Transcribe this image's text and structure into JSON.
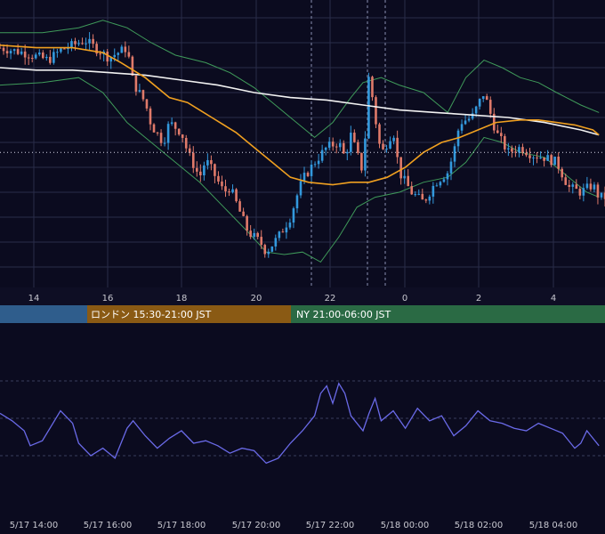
{
  "chart_data": [
    {
      "type": "candlestick",
      "panel": "price",
      "overlays": [
        "bollinger-bands",
        "moving-average-orange",
        "moving-average-white"
      ],
      "colors": {
        "up": "#3399dd",
        "down": "#e07a6a",
        "bollinger": "#3f9a5a",
        "ma_fast": "#f0a020",
        "ma_slow": "#f2f2f2",
        "grid": "#2a2d4a",
        "background": "#0b0b1f"
      },
      "ylim": [
        0,
        100
      ],
      "current_price_level": 46,
      "x_tick_labels": [
        "14",
        "16",
        "18",
        "20",
        "22",
        "0",
        "2",
        "4"
      ],
      "sessions": [
        {
          "name": "tokyo",
          "label": "",
          "color": "#2f5d8c"
        },
        {
          "name": "london",
          "label": "ロンドン 15:30-21:00 JST",
          "color": "#8a5a14"
        },
        {
          "name": "newyork",
          "label": "NY 21:00-06:00 JST",
          "color": "#2a6a44"
        }
      ],
      "close_path": [
        [
          0,
          88
        ],
        [
          4,
          86
        ],
        [
          8,
          83
        ],
        [
          10,
          87
        ],
        [
          14,
          91
        ],
        [
          18,
          84
        ],
        [
          21,
          88
        ],
        [
          22,
          74
        ],
        [
          24,
          66
        ],
        [
          25,
          57
        ],
        [
          27,
          50
        ],
        [
          28,
          58
        ],
        [
          30,
          54
        ],
        [
          31,
          46
        ],
        [
          33,
          36
        ],
        [
          34,
          43
        ],
        [
          35,
          39
        ],
        [
          37,
          30
        ],
        [
          38,
          32
        ],
        [
          40,
          20
        ],
        [
          41,
          14
        ],
        [
          43,
          10
        ],
        [
          44,
          6
        ],
        [
          46,
          12
        ],
        [
          48,
          20
        ],
        [
          49,
          28
        ],
        [
          50,
          35
        ],
        [
          52,
          42
        ],
        [
          54,
          48
        ],
        [
          56,
          50
        ],
        [
          57,
          44
        ],
        [
          58,
          53
        ],
        [
          60,
          38
        ],
        [
          61,
          78
        ],
        [
          62,
          60
        ],
        [
          63,
          45
        ],
        [
          65,
          55
        ],
        [
          66,
          38
        ],
        [
          68,
          30
        ],
        [
          70,
          26
        ],
        [
          72,
          34
        ],
        [
          74,
          38
        ],
        [
          75,
          46
        ],
        [
          76,
          58
        ],
        [
          78,
          60
        ],
        [
          80,
          70
        ],
        [
          81,
          62
        ],
        [
          82,
          54
        ],
        [
          84,
          46
        ],
        [
          86,
          48
        ],
        [
          88,
          45
        ],
        [
          90,
          44
        ],
        [
          92,
          42
        ],
        [
          94,
          32
        ],
        [
          96,
          30
        ],
        [
          98,
          33
        ],
        [
          99,
          28
        ]
      ],
      "upper_band_path": [
        [
          0,
          94
        ],
        [
          7,
          94
        ],
        [
          13,
          96
        ],
        [
          17,
          99
        ],
        [
          21,
          96
        ],
        [
          25,
          90
        ],
        [
          29,
          85
        ],
        [
          34,
          82
        ],
        [
          38,
          78
        ],
        [
          42,
          72
        ],
        [
          46,
          64
        ],
        [
          49,
          58
        ],
        [
          52,
          52
        ],
        [
          55,
          58
        ],
        [
          58,
          68
        ],
        [
          60,
          74
        ],
        [
          63,
          76
        ],
        [
          66,
          73
        ],
        [
          70,
          70
        ],
        [
          74,
          62
        ],
        [
          77,
          76
        ],
        [
          80,
          83
        ],
        [
          83,
          80
        ],
        [
          86,
          76
        ],
        [
          89,
          74
        ],
        [
          92,
          70
        ],
        [
          96,
          65
        ],
        [
          99,
          62
        ]
      ],
      "lower_band_path": [
        [
          0,
          73
        ],
        [
          7,
          74
        ],
        [
          13,
          76
        ],
        [
          17,
          70
        ],
        [
          21,
          58
        ],
        [
          25,
          50
        ],
        [
          29,
          42
        ],
        [
          33,
          34
        ],
        [
          37,
          24
        ],
        [
          41,
          14
        ],
        [
          44,
          6
        ],
        [
          47,
          5
        ],
        [
          50,
          6
        ],
        [
          53,
          2
        ],
        [
          56,
          12
        ],
        [
          59,
          24
        ],
        [
          62,
          28
        ],
        [
          66,
          30
        ],
        [
          70,
          34
        ],
        [
          74,
          36
        ],
        [
          77,
          42
        ],
        [
          80,
          52
        ],
        [
          83,
          50
        ],
        [
          86,
          46
        ],
        [
          90,
          44
        ],
        [
          94,
          36
        ],
        [
          97,
          30
        ],
        [
          99,
          28
        ]
      ],
      "ma_fast_path": [
        [
          0,
          89
        ],
        [
          6,
          88
        ],
        [
          12,
          88
        ],
        [
          17,
          86
        ],
        [
          20,
          82
        ],
        [
          24,
          76
        ],
        [
          28,
          68
        ],
        [
          31,
          66
        ],
        [
          35,
          60
        ],
        [
          39,
          54
        ],
        [
          42,
          48
        ],
        [
          45,
          42
        ],
        [
          48,
          36
        ],
        [
          51,
          34
        ],
        [
          55,
          33
        ],
        [
          58,
          34
        ],
        [
          61,
          34
        ],
        [
          64,
          36
        ],
        [
          67,
          40
        ],
        [
          70,
          46
        ],
        [
          73,
          50
        ],
        [
          76,
          52
        ],
        [
          79,
          55
        ],
        [
          82,
          58
        ],
        [
          86,
          59
        ],
        [
          89,
          59
        ],
        [
          92,
          58
        ],
        [
          95,
          57
        ],
        [
          98,
          55
        ],
        [
          99,
          53
        ]
      ],
      "ma_slow_path": [
        [
          0,
          80
        ],
        [
          6,
          79
        ],
        [
          12,
          79
        ],
        [
          18,
          78
        ],
        [
          24,
          77
        ],
        [
          30,
          75
        ],
        [
          36,
          73
        ],
        [
          42,
          70
        ],
        [
          48,
          68
        ],
        [
          54,
          67
        ],
        [
          60,
          65
        ],
        [
          66,
          63
        ],
        [
          72,
          62
        ],
        [
          78,
          61
        ],
        [
          84,
          60
        ],
        [
          90,
          58
        ],
        [
          96,
          55
        ],
        [
          99,
          53
        ]
      ]
    },
    {
      "type": "line",
      "panel": "oscillator",
      "color": "#6a6ae8",
      "ylim": [
        0,
        100
      ],
      "levels": [
        20,
        50,
        80
      ],
      "x_tick_labels": [
        "5/17 14:00",
        "5/17 16:00",
        "5/17 18:00",
        "5/17 20:00",
        "5/17 22:00",
        "5/18 00:00",
        "5/18 02:00",
        "5/18 04:00"
      ],
      "path": [
        [
          0,
          54
        ],
        [
          2,
          48
        ],
        [
          4,
          40
        ],
        [
          5,
          28
        ],
        [
          7,
          32
        ],
        [
          9,
          48
        ],
        [
          10,
          56
        ],
        [
          12,
          46
        ],
        [
          13,
          30
        ],
        [
          15,
          20
        ],
        [
          17,
          26
        ],
        [
          19,
          18
        ],
        [
          21,
          42
        ],
        [
          22,
          48
        ],
        [
          24,
          36
        ],
        [
          26,
          26
        ],
        [
          28,
          34
        ],
        [
          30,
          40
        ],
        [
          32,
          30
        ],
        [
          34,
          32
        ],
        [
          36,
          28
        ],
        [
          38,
          22
        ],
        [
          40,
          26
        ],
        [
          42,
          24
        ],
        [
          44,
          14
        ],
        [
          46,
          18
        ],
        [
          48,
          30
        ],
        [
          50,
          40
        ],
        [
          52,
          52
        ],
        [
          53,
          70
        ],
        [
          54,
          76
        ],
        [
          55,
          62
        ],
        [
          56,
          78
        ],
        [
          57,
          70
        ],
        [
          58,
          52
        ],
        [
          60,
          40
        ],
        [
          61,
          54
        ],
        [
          62,
          66
        ],
        [
          63,
          48
        ],
        [
          65,
          56
        ],
        [
          67,
          42
        ],
        [
          69,
          58
        ],
        [
          71,
          48
        ],
        [
          73,
          52
        ],
        [
          75,
          36
        ],
        [
          77,
          44
        ],
        [
          79,
          56
        ],
        [
          81,
          48
        ],
        [
          83,
          46
        ],
        [
          85,
          42
        ],
        [
          87,
          40
        ],
        [
          89,
          46
        ],
        [
          91,
          42
        ],
        [
          93,
          38
        ],
        [
          95,
          26
        ],
        [
          96,
          30
        ],
        [
          97,
          40
        ],
        [
          98,
          34
        ],
        [
          99,
          28
        ]
      ]
    }
  ]
}
